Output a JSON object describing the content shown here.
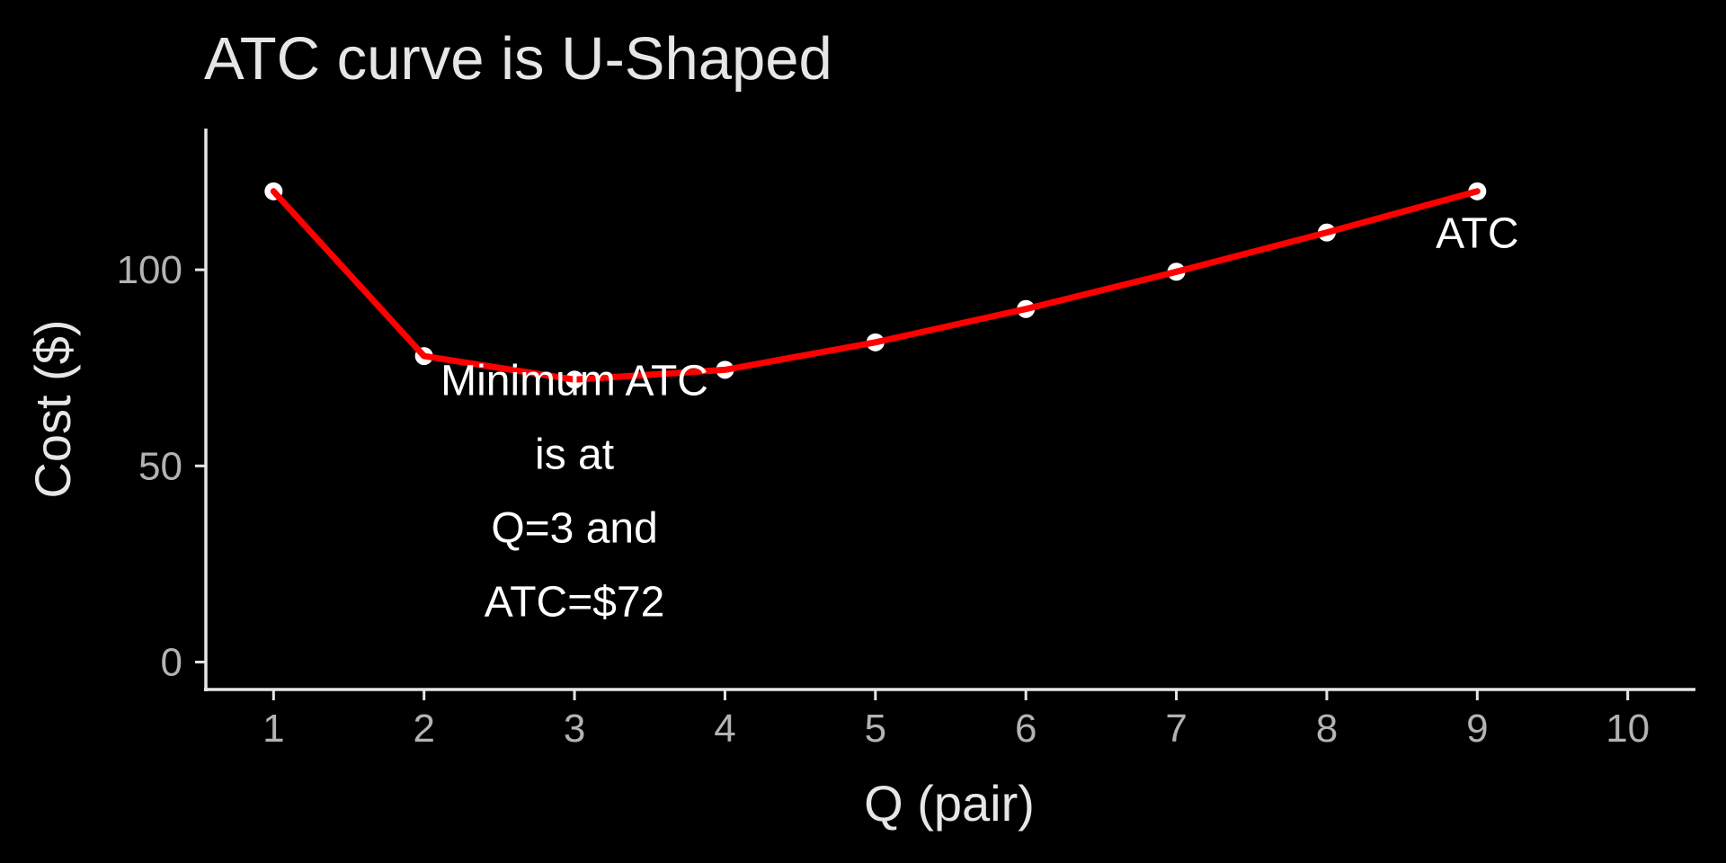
{
  "chart_data": {
    "type": "line",
    "title": "ATC curve is U-Shaped",
    "xlabel": "Q (pair)",
    "ylabel": "Cost ($)",
    "xlim": [
      0.55,
      10.45
    ],
    "ylim": [
      -7,
      136
    ],
    "x_ticks": [
      1,
      2,
      3,
      4,
      5,
      6,
      7,
      8,
      9,
      10
    ],
    "y_ticks": [
      0,
      50,
      100
    ],
    "grid": false,
    "legend": "none",
    "series": [
      {
        "name": "ATC",
        "color": "#ff0000",
        "x": [
          1,
          2,
          3,
          4,
          5,
          6,
          7,
          8,
          9
        ],
        "y": [
          120,
          78,
          72,
          74.5,
          81.5,
          90,
          99.5,
          109.5,
          120
        ]
      }
    ],
    "points": {
      "color": "#ffffff",
      "x": [
        1,
        2,
        3,
        4,
        5,
        6,
        7,
        8,
        9
      ],
      "y": [
        120,
        78,
        72,
        74.5,
        81.5,
        90,
        99.5,
        109.5,
        120
      ]
    },
    "annotations": [
      {
        "name": "min-atc-note",
        "x": 3,
        "y": 72,
        "lines": [
          "Minimum ATC",
          "is at",
          "Q=3 and",
          "ATC=$72"
        ]
      },
      {
        "name": "atc-series-label",
        "x": 9,
        "y": 109.5,
        "lines": [
          "ATC"
        ]
      }
    ]
  }
}
